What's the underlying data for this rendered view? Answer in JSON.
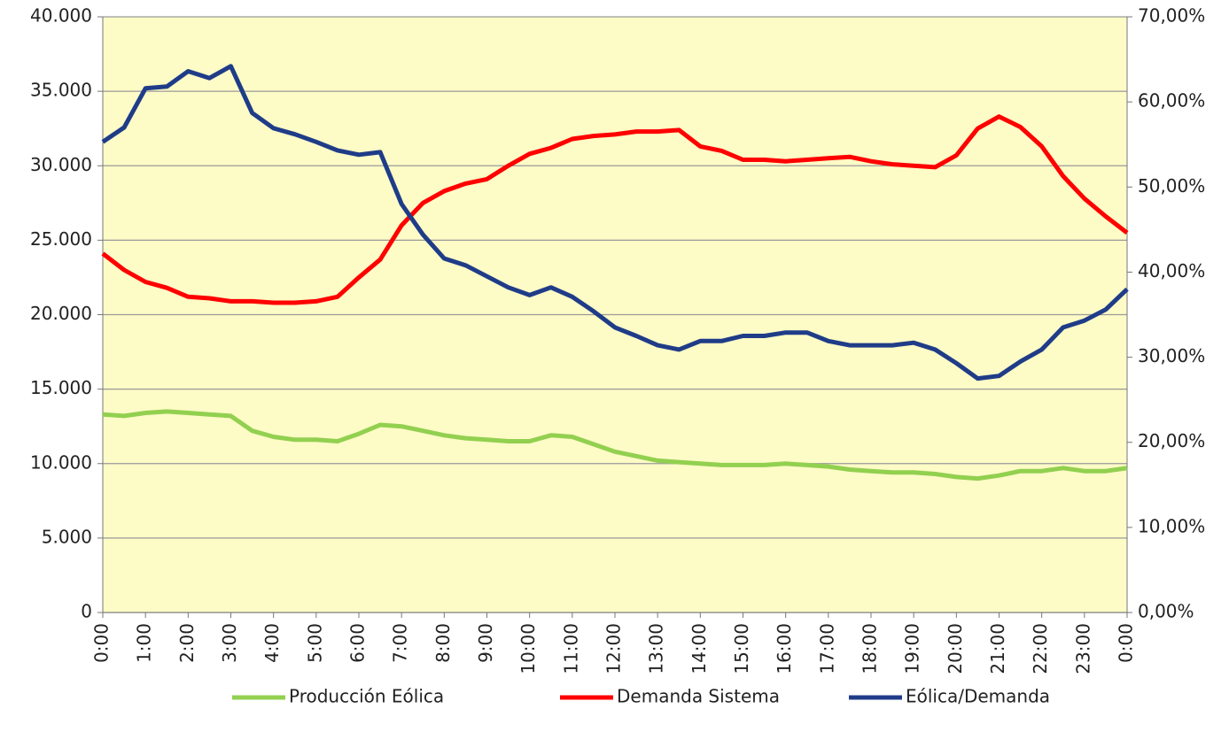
{
  "chart_data": {
    "type": "line",
    "x": [
      0,
      0.5,
      1,
      1.5,
      2,
      2.5,
      3,
      3.5,
      4,
      4.5,
      5,
      5.5,
      6,
      6.5,
      7,
      7.5,
      8,
      8.5,
      9,
      9.5,
      10,
      10.5,
      11,
      11.5,
      12,
      12.5,
      13,
      13.5,
      14,
      14.5,
      15,
      15.5,
      16,
      16.5,
      17,
      17.5,
      18,
      18.5,
      19,
      19.5,
      20,
      20.5,
      21,
      21.5,
      22,
      22.5,
      23,
      23.5,
      24
    ],
    "xlim": [
      0,
      24
    ],
    "xticks": [
      {
        "value": 0,
        "label": "0:00"
      },
      {
        "value": 1,
        "label": "1:00"
      },
      {
        "value": 2,
        "label": "2:00"
      },
      {
        "value": 3,
        "label": "3:00"
      },
      {
        "value": 4,
        "label": "4:00"
      },
      {
        "value": 5,
        "label": "5:00"
      },
      {
        "value": 6,
        "label": "6:00"
      },
      {
        "value": 7,
        "label": "7:00"
      },
      {
        "value": 8,
        "label": "8:00"
      },
      {
        "value": 9,
        "label": "9:00"
      },
      {
        "value": 10,
        "label": "10:00"
      },
      {
        "value": 11,
        "label": "11:00"
      },
      {
        "value": 12,
        "label": "12:00"
      },
      {
        "value": 13,
        "label": "13:00"
      },
      {
        "value": 14,
        "label": "14:00"
      },
      {
        "value": 15,
        "label": "15:00"
      },
      {
        "value": 16,
        "label": "16:00"
      },
      {
        "value": 17,
        "label": "17:00"
      },
      {
        "value": 18,
        "label": "18:00"
      },
      {
        "value": 19,
        "label": "19:00"
      },
      {
        "value": 20,
        "label": "20:00"
      },
      {
        "value": 21,
        "label": "21:00"
      },
      {
        "value": 22,
        "label": "22:00"
      },
      {
        "value": 23,
        "label": "23:00"
      },
      {
        "value": 24,
        "label": "0:00"
      }
    ],
    "ylim": [
      0,
      40000
    ],
    "yticks": [
      0,
      {
        "value": 5000,
        "label": "5.000"
      },
      {
        "value": 10000,
        "label": "10.000"
      },
      {
        "value": 15000,
        "label": "15.000"
      },
      {
        "value": 20000,
        "label": "20.000"
      },
      {
        "value": 25000,
        "label": "25.000"
      },
      {
        "value": 30000,
        "label": "30.000"
      },
      {
        "value": 35000,
        "label": "35.000"
      },
      {
        "value": 40000,
        "label": "40.000"
      }
    ],
    "y2lim": [
      0,
      70
    ],
    "y2ticks": [
      {
        "value": 0,
        "label": "0,00%"
      },
      {
        "value": 10,
        "label": "10,00%"
      },
      {
        "value": 20,
        "label": "20,00%"
      },
      {
        "value": 30,
        "label": "30,00%"
      },
      {
        "value": 40,
        "label": "40,00%"
      },
      {
        "value": 50,
        "label": "50,00%"
      },
      {
        "value": 60,
        "label": "60,00%"
      },
      {
        "value": 70,
        "label": "70,00%"
      }
    ],
    "grid": true,
    "background": "#fdfbc6",
    "legend": "bottom",
    "series": [
      {
        "name": "Producción Eólica",
        "color": "#92d050",
        "values": [
          13300,
          13200,
          13400,
          13500,
          13400,
          13300,
          13200,
          12200,
          11800,
          11600,
          11600,
          11500,
          12000,
          12600,
          12500,
          12200,
          11900,
          11700,
          11600,
          11500,
          11500,
          11900,
          11800,
          11300,
          10800,
          10500,
          10200,
          10100,
          10000,
          9900,
          9900,
          9900,
          10000,
          9900,
          9800,
          9600,
          9500,
          9400,
          9400,
          9300,
          9100,
          9000,
          9200,
          9500,
          9500,
          9700,
          9500,
          9500,
          9700
        ]
      },
      {
        "name": "Demanda Sistema",
        "color": "#ff0000",
        "values": [
          24100,
          23000,
          22200,
          21800,
          21200,
          21100,
          20900,
          20900,
          20800,
          20800,
          20900,
          21200,
          22500,
          23700,
          26000,
          27500,
          28300,
          28800,
          29100,
          30000,
          30800,
          31200,
          31800,
          32000,
          32100,
          32300,
          32300,
          32400,
          31300,
          31000,
          30400,
          30400,
          30300,
          30400,
          30500,
          30600,
          30300,
          30100,
          30000,
          29900,
          30700,
          32500,
          33300,
          32600,
          31300,
          29300,
          27800,
          26600,
          25500
        ]
      },
      {
        "name": "Eólica/Demanda",
        "color": "#1f3c88",
        "axis": "y2",
        "values": [
          55.3,
          57,
          61.6,
          61.8,
          63.6,
          62.8,
          64.2,
          58.7,
          56.9,
          56.2,
          55.3,
          54.3,
          53.8,
          54.1,
          48,
          44.4,
          41.6,
          40.8,
          39.5,
          38.2,
          37.3,
          38.2,
          37.1,
          35.4,
          33.5,
          32.5,
          31.4,
          30.9,
          31.9,
          31.9,
          32.5,
          32.5,
          32.9,
          32.9,
          31.9,
          31.4,
          31.4,
          31.4,
          31.7,
          30.9,
          29.3,
          27.5,
          27.8,
          29.5,
          30.9,
          33.5,
          34.3,
          35.6,
          38
        ]
      }
    ]
  }
}
